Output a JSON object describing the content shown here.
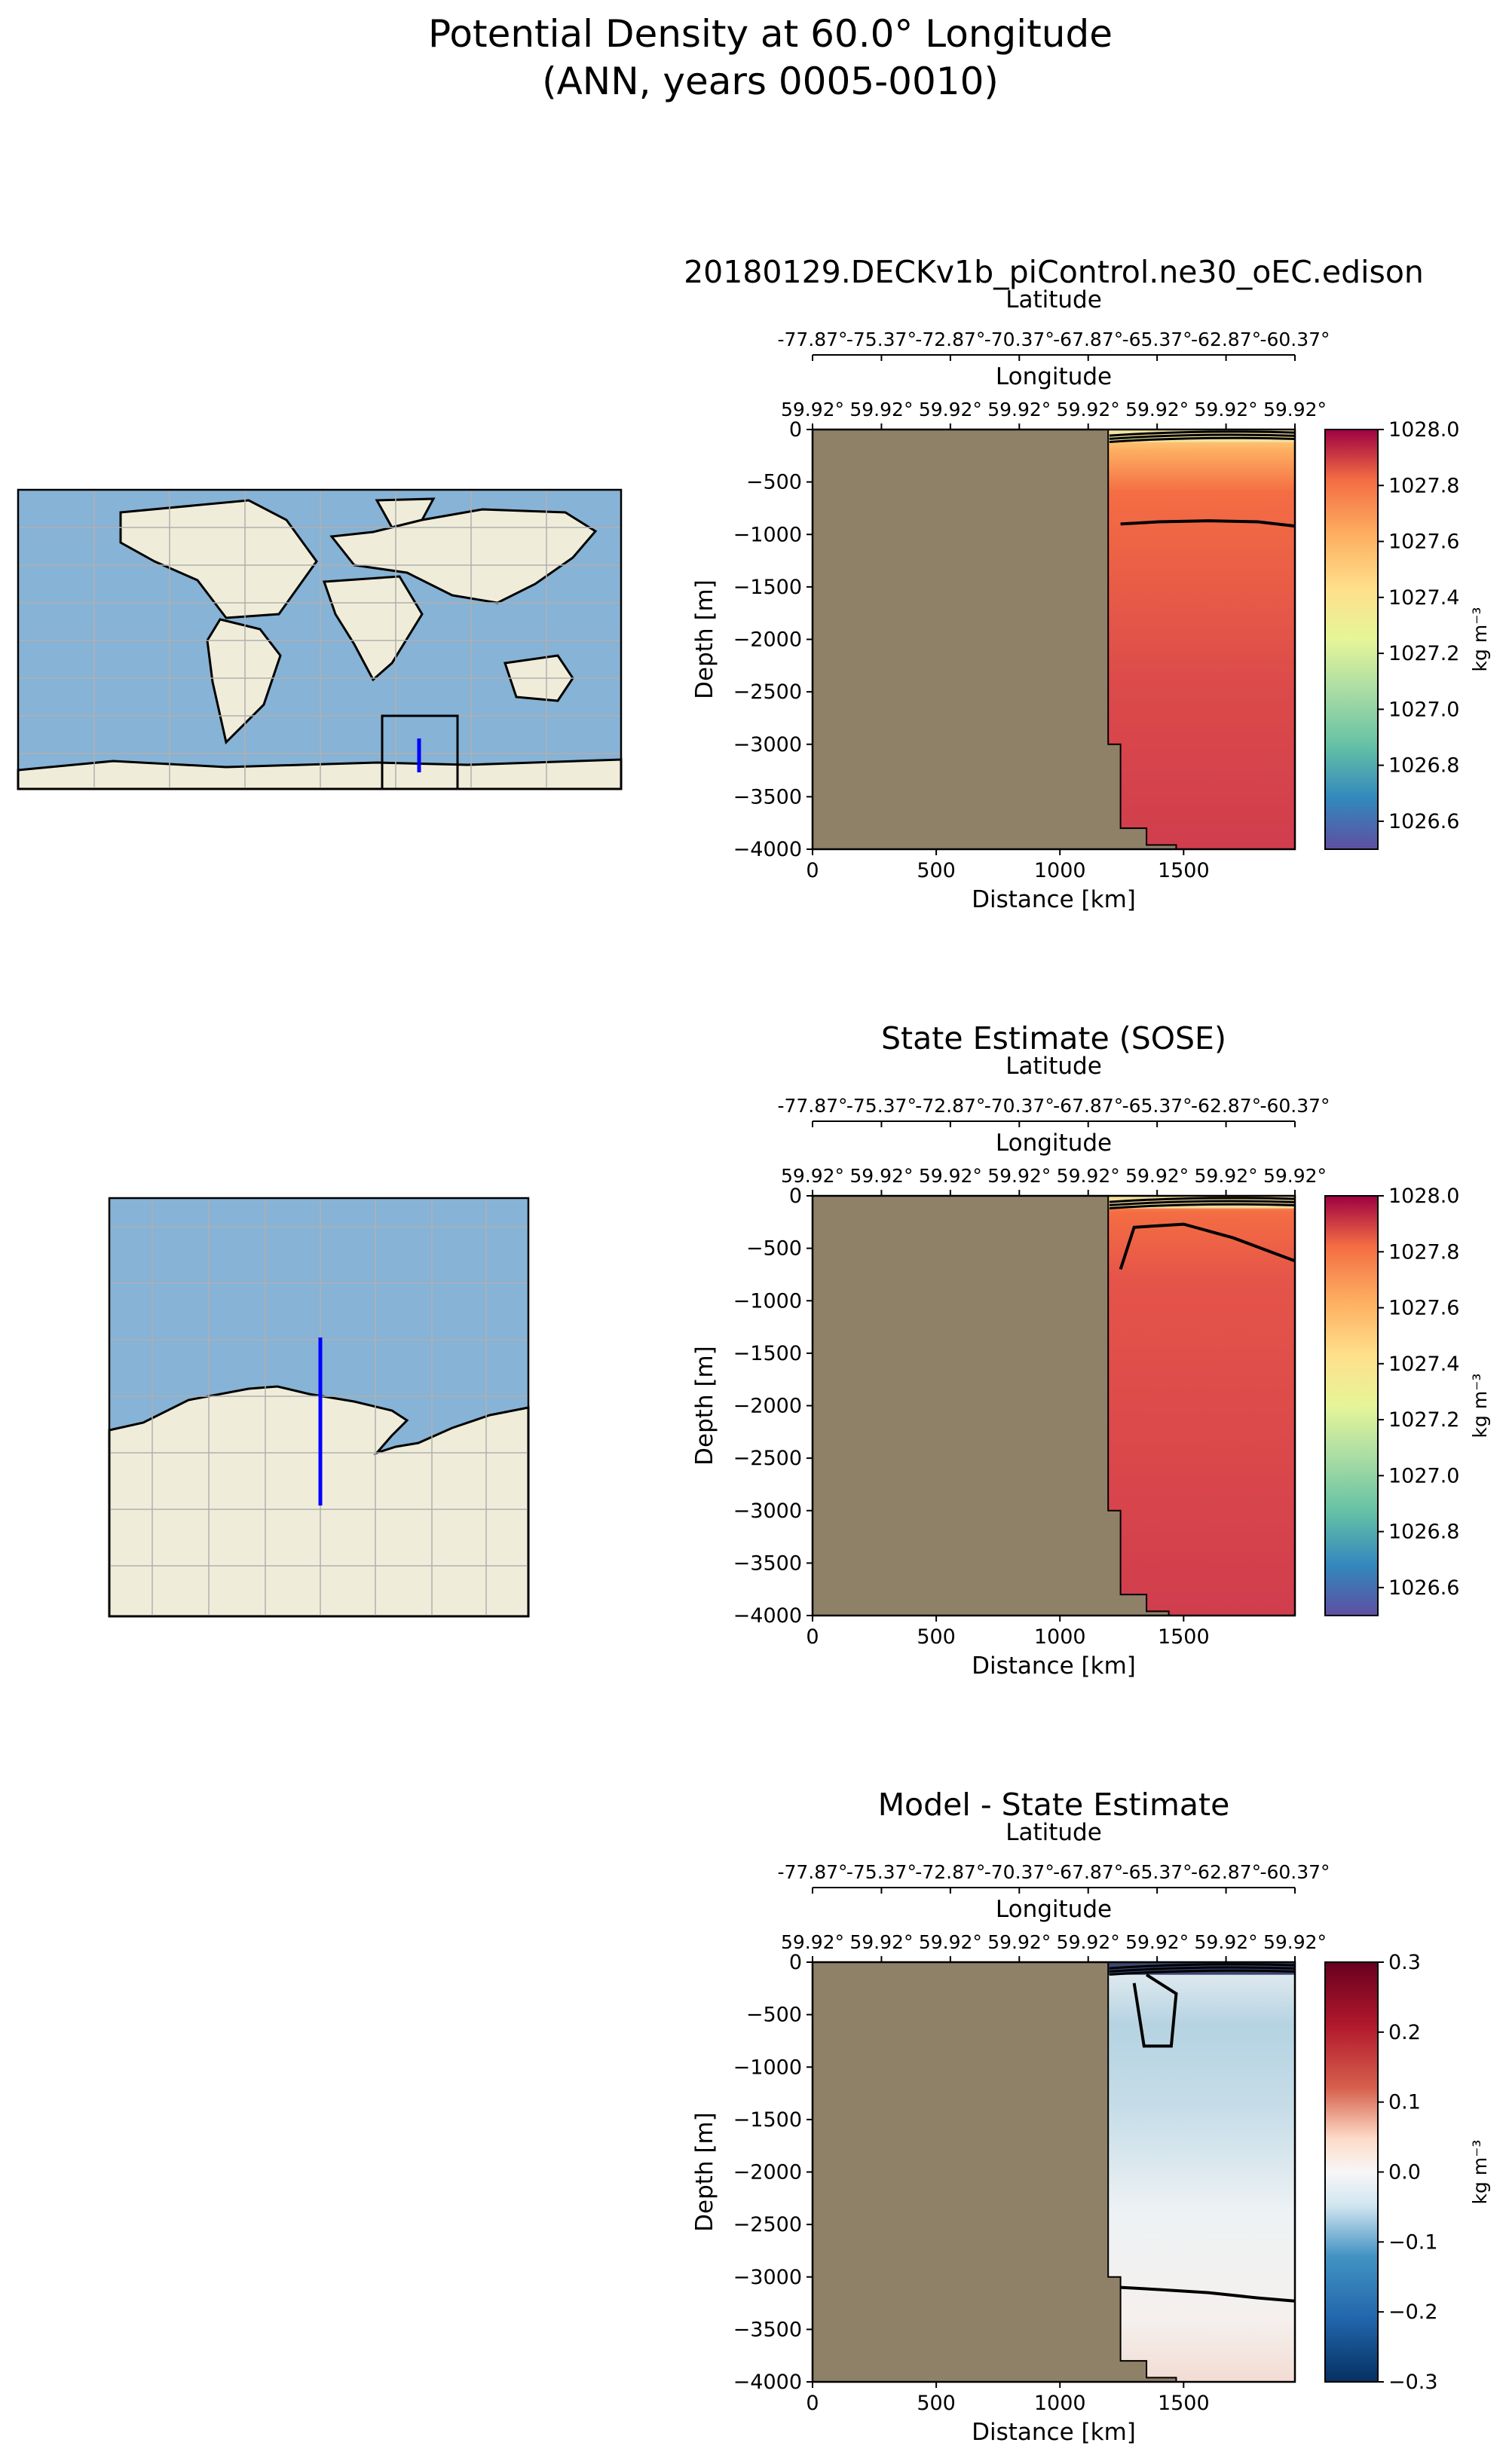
{
  "figure": {
    "title_line1": "Potential Density at 60.0° Longitude",
    "title_line2": "(ANN, years 0005-0010)"
  },
  "colors": {
    "land": "#8f8168",
    "ocean_map": "#86b3d6",
    "land_map": "#efedd9",
    "transect": "#0000ff",
    "grid": "#b0b0b0"
  },
  "shared_axes": {
    "xlabel": "Distance [km]",
    "ylabel": "Depth [m]",
    "x_ticks": [
      "0",
      "500",
      "1000",
      "1500"
    ],
    "x_tick_values": [
      0,
      500,
      1000,
      1500
    ],
    "y_ticks": [
      "0",
      "−500",
      "−1000",
      "−1500",
      "−2000",
      "−2500",
      "−3000",
      "−3500",
      "−4000"
    ],
    "y_tick_values": [
      0,
      -500,
      -1000,
      -1500,
      -2000,
      -2500,
      -3000,
      -3500,
      -4000
    ],
    "xlim": [
      0,
      1950
    ],
    "ylim": [
      -4000,
      0
    ],
    "lat_label": "Latitude",
    "lat_ticks": [
      "-77.87°",
      "-75.37°",
      "-72.87°",
      "-70.37°",
      "-67.87°",
      "-65.37°",
      "-62.87°",
      "-60.37°"
    ],
    "lon_label": "Longitude",
    "lon_ticks": [
      "59.92°",
      "59.92°",
      "59.92°",
      "59.92°",
      "59.92°",
      "59.92°",
      "59.92°",
      "59.92°"
    ]
  },
  "chart_data": [
    {
      "type": "heatmap",
      "title": "20180129.DECKv1b_piControl.ne30_oEC.edison",
      "colorbar_label": "kg m⁻³",
      "colorbar_ticks": [
        "1026.6",
        "1026.8",
        "1027.0",
        "1027.2",
        "1027.4",
        "1027.6",
        "1027.8",
        "1028.0"
      ],
      "colorbar_range": [
        1026.5,
        1028.0
      ],
      "colormap": "Spectral_r",
      "land_boundary": [
        [
          1195,
          0
        ],
        [
          1195,
          -3000
        ],
        [
          1245,
          -3000
        ],
        [
          1245,
          -3800
        ],
        [
          1350,
          -3800
        ],
        [
          1350,
          -3960
        ],
        [
          1470,
          -3960
        ],
        [
          1470,
          -4000
        ]
      ],
      "contours": [
        {
          "level": 1027.8,
          "points": [
            [
              1245,
              -900
            ],
            [
              1400,
              -880
            ],
            [
              1600,
              -870
            ],
            [
              1800,
              -880
            ],
            [
              1950,
              -920
            ]
          ]
        }
      ]
    },
    {
      "type": "heatmap",
      "title": "State Estimate (SOSE)",
      "colorbar_label": "kg m⁻³",
      "colorbar_ticks": [
        "1026.6",
        "1026.8",
        "1027.0",
        "1027.2",
        "1027.4",
        "1027.6",
        "1027.8",
        "1028.0"
      ],
      "colorbar_range": [
        1026.5,
        1028.0
      ],
      "colormap": "Spectral_r",
      "land_boundary": [
        [
          1195,
          0
        ],
        [
          1195,
          -3000
        ],
        [
          1245,
          -3000
        ],
        [
          1245,
          -3800
        ],
        [
          1350,
          -3800
        ],
        [
          1350,
          -3960
        ],
        [
          1440,
          -3960
        ],
        [
          1440,
          -4000
        ]
      ],
      "contours": [
        {
          "level": 1027.8,
          "points": [
            [
              1245,
              -700
            ],
            [
              1300,
              -300
            ],
            [
              1500,
              -270
            ],
            [
              1700,
              -400
            ],
            [
              1950,
              -620
            ]
          ]
        }
      ]
    },
    {
      "type": "heatmap",
      "title": "Model - State Estimate",
      "colorbar_label": "kg m⁻³",
      "colorbar_ticks": [
        "−0.3",
        "−0.2",
        "−0.1",
        "0.0",
        "0.1",
        "0.2",
        "0.3"
      ],
      "colorbar_range": [
        -0.3,
        0.3
      ],
      "colormap": "RdBu_r",
      "land_boundary": [
        [
          1195,
          0
        ],
        [
          1195,
          -3000
        ],
        [
          1245,
          -3000
        ],
        [
          1245,
          -3800
        ],
        [
          1350,
          -3800
        ],
        [
          1350,
          -3960
        ],
        [
          1470,
          -3960
        ],
        [
          1470,
          -4000
        ]
      ],
      "contours": [
        {
          "level": -0.05,
          "points": [
            [
              1300,
              -200
            ],
            [
              1340,
              -800
            ],
            [
              1450,
              -800
            ],
            [
              1470,
              -300
            ],
            [
              1350,
              -120
            ]
          ]
        },
        {
          "level": 0.0,
          "points": [
            [
              1245,
              -3100
            ],
            [
              1400,
              -3120
            ],
            [
              1600,
              -3150
            ],
            [
              1800,
              -3200
            ],
            [
              1950,
              -3230
            ]
          ]
        }
      ]
    }
  ]
}
